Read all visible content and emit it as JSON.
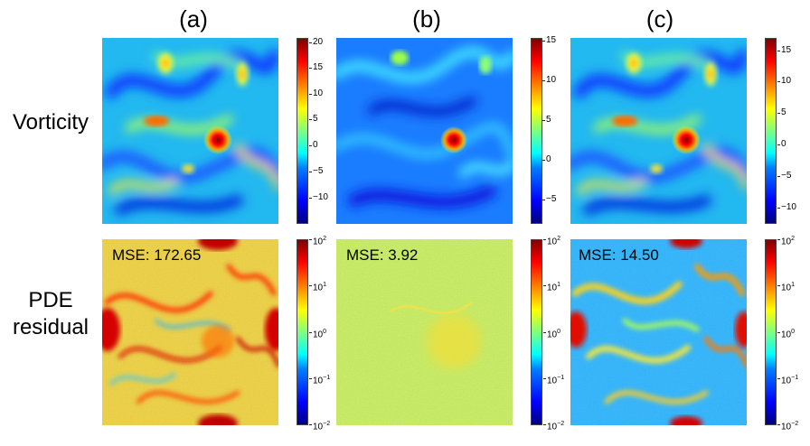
{
  "columns": [
    "(a)",
    "(b)",
    "(c)"
  ],
  "rows": {
    "vorticity": "Vorticity",
    "pde_line1": "PDE",
    "pde_line2": "residual"
  },
  "mse": [
    "MSE: 172.65",
    "MSE: 3.92",
    "MSE: 14.50"
  ],
  "vorticity_colorbars": [
    {
      "ticks": [
        "20",
        "15",
        "10",
        "5",
        "0",
        "−5",
        "−10"
      ]
    },
    {
      "ticks": [
        "15",
        "10",
        "5",
        "0",
        "−5"
      ]
    },
    {
      "ticks": [
        "15",
        "10",
        "5",
        "0",
        "−5",
        "−10"
      ]
    }
  ],
  "residual_colorbar": {
    "ticks": [
      "10",
      "10",
      "10",
      "10",
      "10"
    ],
    "exponents": [
      "2",
      "1",
      "0",
      "−1",
      "−2"
    ]
  },
  "colormap": "jet"
}
